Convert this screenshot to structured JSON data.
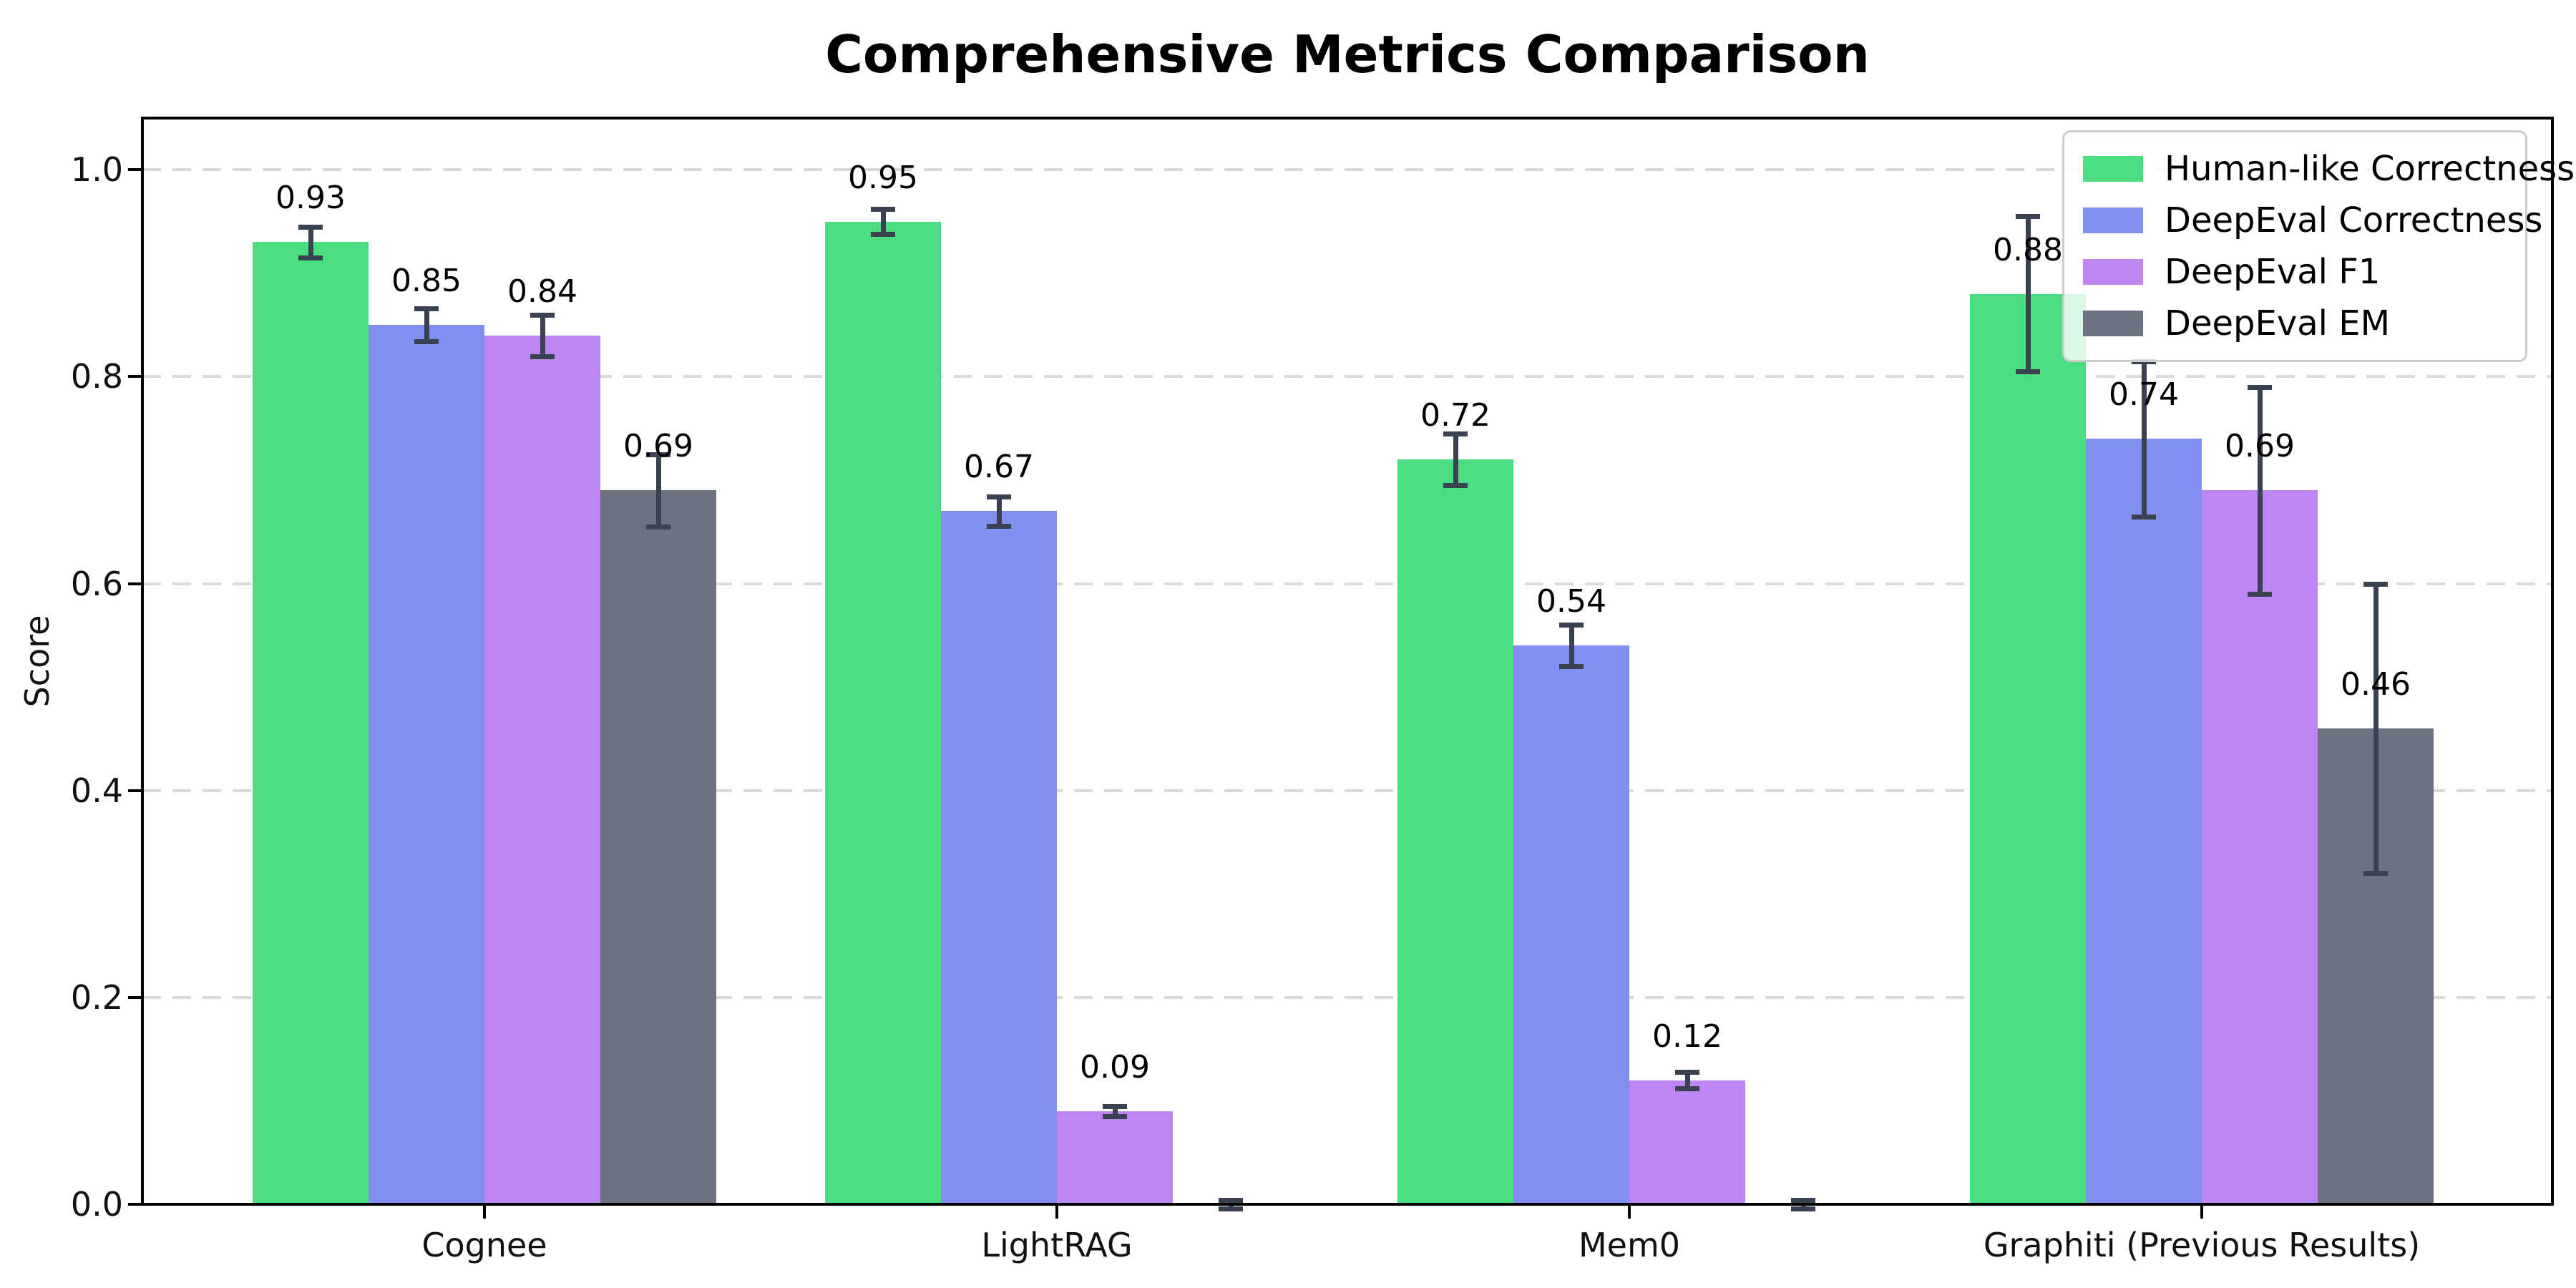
{
  "chart_data": {
    "type": "bar",
    "title": "Comprehensive Metrics Comparison",
    "xlabel": "",
    "ylabel": "Score",
    "categories": [
      "Cognee",
      "LightRAG",
      "Mem0",
      "Graphiti (Previous Results)"
    ],
    "series": [
      {
        "name": "Human-like Correctness",
        "color": "#4ade80",
        "values": [
          0.93,
          0.95,
          0.72,
          0.88
        ],
        "errors": [
          0.015,
          0.012,
          0.025,
          0.075
        ],
        "bar_labels": [
          "0.93",
          "0.95",
          "0.72",
          "0.88"
        ]
      },
      {
        "name": "DeepEval Correctness",
        "color": "#8190f0",
        "values": [
          0.85,
          0.67,
          0.54,
          0.74
        ],
        "errors": [
          0.016,
          0.014,
          0.02,
          0.075
        ],
        "bar_labels": [
          "0.85",
          "0.67",
          "0.54",
          "0.74"
        ]
      },
      {
        "name": "DeepEval F1",
        "color": "#bd86f2",
        "values": [
          0.84,
          0.09,
          0.12,
          0.69
        ],
        "errors": [
          0.02,
          0.005,
          0.008,
          0.1
        ],
        "bar_labels": [
          "0.84",
          "0.09",
          "0.12",
          "0.69"
        ]
      },
      {
        "name": "DeepEval EM",
        "color": "#6b7280",
        "values": [
          0.69,
          0.0,
          0.0,
          0.46
        ],
        "errors": [
          0.035,
          0.004,
          0.004,
          0.14
        ],
        "bar_labels": [
          "0.69",
          "",
          "",
          "0.46"
        ]
      }
    ],
    "ylim": [
      0,
      1.05
    ],
    "yticks": [
      0.0,
      0.2,
      0.4,
      0.6,
      0.8,
      1.0
    ],
    "ytick_labels": [
      "0.0",
      "0.2",
      "0.4",
      "0.6",
      "0.8",
      "1.0"
    ],
    "grid": "horizontal-dashed",
    "legend_position": "upper-right"
  },
  "style": {
    "background": "#ffffff",
    "bar_colors": [
      "#4ade80",
      "#8190f0",
      "#bd86f2",
      "#6b7280"
    ],
    "errorbar_color": "#3a4150",
    "grid_color": "#d9d9d9",
    "spine_color": "#000000",
    "text_color": "#000000",
    "legend_border_color": "#cccccc"
  }
}
